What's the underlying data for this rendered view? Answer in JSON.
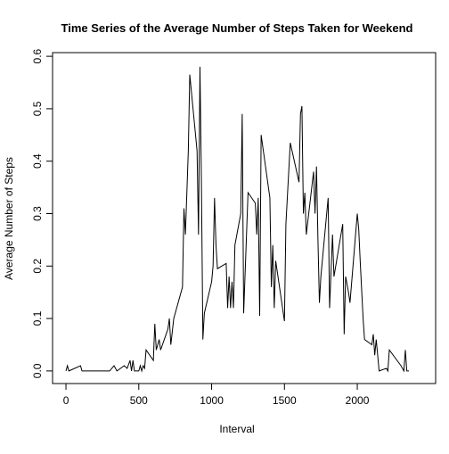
{
  "chart_data": {
    "type": "line",
    "title": "Time Series of the Average Number of Steps Taken for Weekend",
    "xlabel": "Interval",
    "ylabel": "Average Number of Steps",
    "x": [
      0,
      10,
      20,
      100,
      110,
      300,
      330,
      350,
      400,
      420,
      440,
      450,
      460,
      470,
      500,
      510,
      520,
      530,
      540,
      550,
      600,
      610,
      620,
      640,
      650,
      700,
      710,
      720,
      740,
      800,
      810,
      820,
      840,
      850,
      900,
      910,
      920,
      930,
      940,
      950,
      1000,
      1010,
      1020,
      1030,
      1040,
      1100,
      1110,
      1120,
      1130,
      1140,
      1150,
      1160,
      1200,
      1210,
      1220,
      1250,
      1300,
      1310,
      1320,
      1330,
      1340,
      1400,
      1410,
      1420,
      1430,
      1440,
      1500,
      1510,
      1540,
      1600,
      1610,
      1620,
      1630,
      1640,
      1650,
      1700,
      1710,
      1720,
      1730,
      1740,
      1750,
      1800,
      1810,
      1830,
      1840,
      1900,
      1910,
      1920,
      1940,
      1950,
      2000,
      2010,
      2020,
      2040,
      2050,
      2100,
      2110,
      2120,
      2130,
      2140,
      2150,
      2200,
      2210,
      2220,
      2300,
      2310,
      2320,
      2330,
      2340,
      2355
    ],
    "series": [
      {
        "name": "Weekend",
        "color": "#000000",
        "values": [
          0,
          0.01,
          0,
          0.01,
          0,
          0,
          0.01,
          0,
          0.01,
          0.005,
          0.02,
          0,
          0.02,
          0,
          0,
          0.01,
          0,
          0.01,
          0.005,
          0.04,
          0.02,
          0.09,
          0.04,
          0.06,
          0.04,
          0.08,
          0.1,
          0.05,
          0.1,
          0.16,
          0.31,
          0.26,
          0.42,
          0.565,
          0.42,
          0.26,
          0.58,
          0.36,
          0.06,
          0.11,
          0.17,
          0.2,
          0.33,
          0.24,
          0.195,
          0.205,
          0.12,
          0.18,
          0.12,
          0.17,
          0.12,
          0.24,
          0.3,
          0.49,
          0.11,
          0.34,
          0.32,
          0.26,
          0.33,
          0.105,
          0.45,
          0.33,
          0.16,
          0.24,
          0.12,
          0.21,
          0.095,
          0.28,
          0.435,
          0.36,
          0.49,
          0.505,
          0.3,
          0.34,
          0.26,
          0.38,
          0.3,
          0.39,
          0.25,
          0.13,
          0.18,
          0.33,
          0.12,
          0.26,
          0.18,
          0.28,
          0.07,
          0.18,
          0.15,
          0.13,
          0.3,
          0.27,
          0.21,
          0.1,
          0.06,
          0.05,
          0.07,
          0.03,
          0.06,
          0.03,
          0,
          0.005,
          0,
          0.04,
          0.01,
          0.005,
          0,
          0.04,
          0,
          0
        ]
      }
    ],
    "xlim": [
      -92,
      2538
    ],
    "xticks": [
      0,
      500,
      1000,
      1500,
      2000
    ],
    "ylim": [
      -0.024,
      0.607
    ],
    "yticks": [
      {
        "value": 0,
        "label": "0.0"
      },
      0.1,
      0.2,
      0.3,
      0.4,
      0.5,
      0.6
    ]
  }
}
